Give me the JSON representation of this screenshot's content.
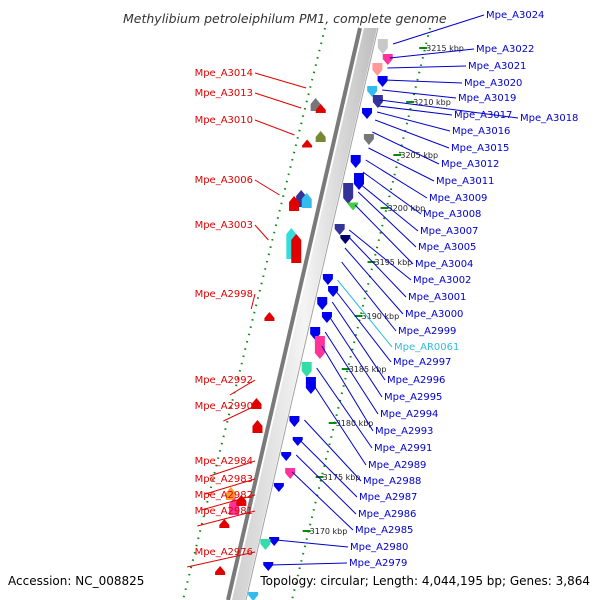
{
  "title": "Methylibium petroleiphilum PM1, complete genome",
  "accession": "Accession: NC_008825",
  "topology": "Topology: circular; Length: 4,044,195 bp; Genes: 3,864",
  "colors": {
    "reverse_label": "#e00000",
    "forward_label": "#0000cc",
    "rna_label": "#33bbdd",
    "backbone": "#8a8a8a",
    "ticks": "#008800"
  },
  "scale_marks": [
    "3215 kbp",
    "3210 kbp",
    "3205 kbp",
    "3200 kbp",
    "3195 kbp",
    "3190 kbp",
    "3185 kbp",
    "3180 kbp",
    "3175 kbp",
    "3170 kbp"
  ],
  "reverse_genes": [
    "Mpe_A3014",
    "Mpe_A3013",
    "Mpe_A3010",
    "Mpe_A3006",
    "Mpe_A3003",
    "Mpe_A2998",
    "Mpe_A2992",
    "Mpe_A2990",
    "Mpe_A2984",
    "Mpe_A2983",
    "Mpe_A2982",
    "Mpe_A2981",
    "Mpe_A2976"
  ],
  "forward_genes": [
    "Mpe_A3024",
    "Mpe_A3022",
    "Mpe_A3021",
    "Mpe_A3020",
    "Mpe_A3019",
    "Mpe_A3018",
    "Mpe_A3017",
    "Mpe_A3016",
    "Mpe_A3015",
    "Mpe_A3012",
    "Mpe_A3011",
    "Mpe_A3009",
    "Mpe_A3008",
    "Mpe_A3007",
    "Mpe_A3005",
    "Mpe_A3004",
    "Mpe_A3002",
    "Mpe_A3001",
    "Mpe_A3000",
    "Mpe_A2999",
    "Mpe_AR0061",
    "Mpe_A2997",
    "Mpe_A2996",
    "Mpe_A2995",
    "Mpe_A2994",
    "Mpe_A2993",
    "Mpe_A2991",
    "Mpe_A2989",
    "Mpe_A2988",
    "Mpe_A2987",
    "Mpe_A2986",
    "Mpe_A2985",
    "Mpe_A2980",
    "Mpe_A2979"
  ]
}
